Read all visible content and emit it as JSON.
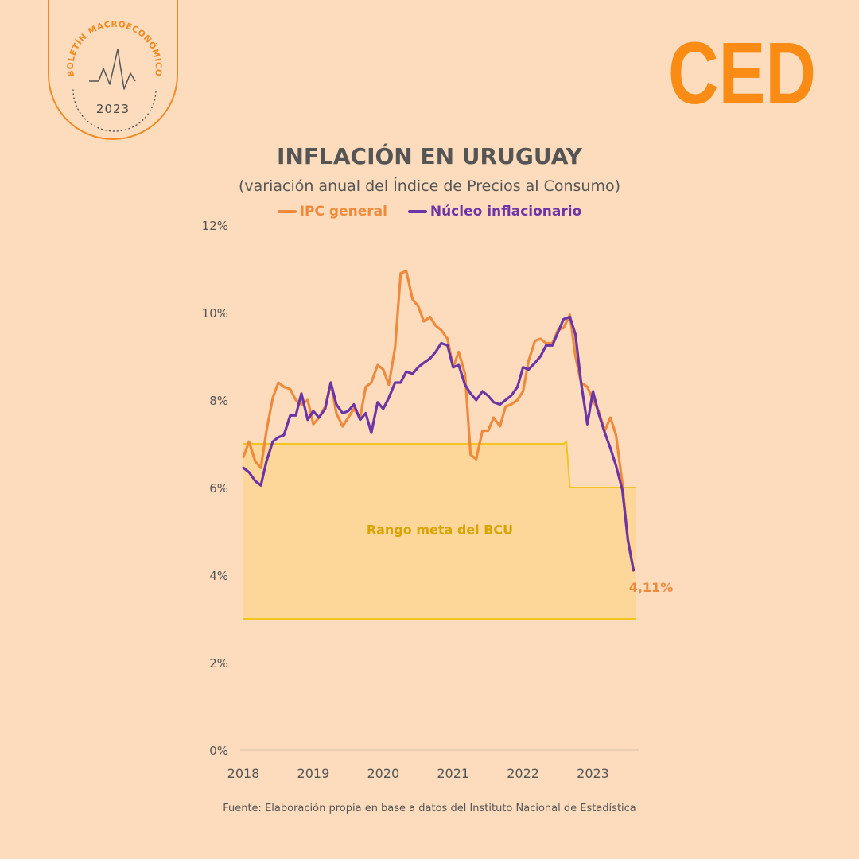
{
  "badge": {
    "arc_text": "BOLETÍN MACROECONÓMICO",
    "year": "2023",
    "icon": "pulse-line-icon"
  },
  "logo": {
    "text": "CED",
    "color": "#fa8c16"
  },
  "colors": {
    "ipc": "#ef8a3c",
    "nucleo": "#6c35a5",
    "target_line": "#f3c41d",
    "target_fill": "#fdd69a",
    "target_label": "#d9a400",
    "axis_text": "#555555",
    "background": "#fddcbd"
  },
  "source": "Fuente: Elaboración propia en base a datos del Instituto Nacional de Estadística",
  "chart_data": {
    "type": "line",
    "title": "INFLACIÓN EN URUGUAY",
    "subtitle": "(variación anual del Índice de Precios al Consumo)",
    "x_ticks": [
      "2018",
      "2019",
      "2020",
      "2021",
      "2022",
      "2023"
    ],
    "y_ticks": [
      "0%",
      "2%",
      "4%",
      "6%",
      "8%",
      "10%",
      "12%"
    ],
    "ylim": [
      0,
      12
    ],
    "xlim": [
      2018.0,
      2023.62
    ],
    "grid": false,
    "legend": "top-center",
    "series": [
      {
        "name": "IPC general",
        "color": "#ef8a3c",
        "points": [
          [
            2018.0,
            6.7
          ],
          [
            2018.08,
            7.05
          ],
          [
            2018.17,
            6.6
          ],
          [
            2018.25,
            6.45
          ],
          [
            2018.33,
            7.3
          ],
          [
            2018.42,
            8.05
          ],
          [
            2018.5,
            8.4
          ],
          [
            2018.58,
            8.3
          ],
          [
            2018.67,
            8.25
          ],
          [
            2018.75,
            8.0
          ],
          [
            2018.83,
            7.9
          ],
          [
            2018.92,
            8.0
          ],
          [
            2019.0,
            7.45
          ],
          [
            2019.08,
            7.6
          ],
          [
            2019.17,
            7.85
          ],
          [
            2019.25,
            8.4
          ],
          [
            2019.33,
            7.7
          ],
          [
            2019.42,
            7.4
          ],
          [
            2019.5,
            7.6
          ],
          [
            2019.58,
            7.8
          ],
          [
            2019.67,
            7.6
          ],
          [
            2019.75,
            8.3
          ],
          [
            2019.83,
            8.4
          ],
          [
            2019.92,
            8.8
          ],
          [
            2020.0,
            8.7
          ],
          [
            2020.08,
            8.35
          ],
          [
            2020.17,
            9.2
          ],
          [
            2020.25,
            10.9
          ],
          [
            2020.33,
            10.95
          ],
          [
            2020.42,
            10.3
          ],
          [
            2020.5,
            10.15
          ],
          [
            2020.58,
            9.8
          ],
          [
            2020.67,
            9.9
          ],
          [
            2020.75,
            9.7
          ],
          [
            2020.83,
            9.6
          ],
          [
            2020.92,
            9.4
          ],
          [
            2021.0,
            8.75
          ],
          [
            2021.08,
            9.1
          ],
          [
            2021.17,
            8.6
          ],
          [
            2021.25,
            6.75
          ],
          [
            2021.33,
            6.65
          ],
          [
            2021.42,
            7.3
          ],
          [
            2021.5,
            7.3
          ],
          [
            2021.58,
            7.6
          ],
          [
            2021.67,
            7.4
          ],
          [
            2021.75,
            7.85
          ],
          [
            2021.83,
            7.9
          ],
          [
            2021.92,
            8.0
          ],
          [
            2022.0,
            8.2
          ],
          [
            2022.08,
            8.9
          ],
          [
            2022.17,
            9.35
          ],
          [
            2022.25,
            9.4
          ],
          [
            2022.33,
            9.3
          ],
          [
            2022.42,
            9.3
          ],
          [
            2022.5,
            9.6
          ],
          [
            2022.58,
            9.65
          ],
          [
            2022.67,
            9.95
          ],
          [
            2022.75,
            9.0
          ],
          [
            2022.83,
            8.4
          ],
          [
            2022.92,
            8.3
          ],
          [
            2023.0,
            8.0
          ],
          [
            2023.08,
            7.75
          ],
          [
            2023.17,
            7.3
          ],
          [
            2023.25,
            7.6
          ],
          [
            2023.33,
            7.2
          ],
          [
            2023.42,
            6.1
          ],
          [
            2023.5,
            4.8
          ],
          [
            2023.58,
            4.11
          ]
        ]
      },
      {
        "name": "Núcleo inflacionario",
        "color": "#6c35a5",
        "points": [
          [
            2018.0,
            6.45
          ],
          [
            2018.08,
            6.35
          ],
          [
            2018.17,
            6.15
          ],
          [
            2018.25,
            6.05
          ],
          [
            2018.33,
            6.6
          ],
          [
            2018.42,
            7.05
          ],
          [
            2018.5,
            7.15
          ],
          [
            2018.58,
            7.2
          ],
          [
            2018.67,
            7.65
          ],
          [
            2018.75,
            7.65
          ],
          [
            2018.83,
            8.15
          ],
          [
            2018.92,
            7.55
          ],
          [
            2019.0,
            7.75
          ],
          [
            2019.08,
            7.6
          ],
          [
            2019.17,
            7.8
          ],
          [
            2019.25,
            8.4
          ],
          [
            2019.33,
            7.9
          ],
          [
            2019.42,
            7.7
          ],
          [
            2019.5,
            7.75
          ],
          [
            2019.58,
            7.9
          ],
          [
            2019.67,
            7.55
          ],
          [
            2019.75,
            7.7
          ],
          [
            2019.83,
            7.25
          ],
          [
            2019.92,
            7.95
          ],
          [
            2020.0,
            7.8
          ],
          [
            2020.08,
            8.05
          ],
          [
            2020.17,
            8.4
          ],
          [
            2020.25,
            8.4
          ],
          [
            2020.33,
            8.65
          ],
          [
            2020.42,
            8.6
          ],
          [
            2020.5,
            8.75
          ],
          [
            2020.58,
            8.85
          ],
          [
            2020.67,
            8.95
          ],
          [
            2020.75,
            9.1
          ],
          [
            2020.83,
            9.3
          ],
          [
            2020.92,
            9.25
          ],
          [
            2021.0,
            8.75
          ],
          [
            2021.08,
            8.8
          ],
          [
            2021.17,
            8.35
          ],
          [
            2021.25,
            8.15
          ],
          [
            2021.33,
            8.0
          ],
          [
            2021.42,
            8.2
          ],
          [
            2021.5,
            8.1
          ],
          [
            2021.58,
            7.95
          ],
          [
            2021.67,
            7.9
          ],
          [
            2021.75,
            8.0
          ],
          [
            2021.83,
            8.1
          ],
          [
            2021.92,
            8.3
          ],
          [
            2022.0,
            8.75
          ],
          [
            2022.08,
            8.7
          ],
          [
            2022.17,
            8.85
          ],
          [
            2022.25,
            9.0
          ],
          [
            2022.33,
            9.25
          ],
          [
            2022.42,
            9.25
          ],
          [
            2022.5,
            9.55
          ],
          [
            2022.58,
            9.85
          ],
          [
            2022.67,
            9.9
          ],
          [
            2022.75,
            9.5
          ],
          [
            2022.83,
            8.4
          ],
          [
            2022.92,
            7.45
          ],
          [
            2023.0,
            8.2
          ],
          [
            2023.08,
            7.7
          ],
          [
            2023.17,
            7.25
          ],
          [
            2023.25,
            6.9
          ],
          [
            2023.33,
            6.5
          ],
          [
            2023.42,
            5.95
          ],
          [
            2023.5,
            4.8
          ],
          [
            2023.58,
            4.11
          ]
        ]
      }
    ],
    "target_range": {
      "label": "Rango meta del BCU",
      "lower": 3.0,
      "upper": [
        [
          2018.0,
          7.0
        ],
        [
          2018.42,
          7.0
        ],
        [
          2022.58,
          7.0
        ],
        [
          2022.62,
          7.05
        ],
        [
          2022.67,
          6.0
        ],
        [
          2023.62,
          6.0
        ]
      ]
    },
    "annotation": {
      "text": "4,11%",
      "x": 2023.58,
      "y": 4.11
    }
  }
}
